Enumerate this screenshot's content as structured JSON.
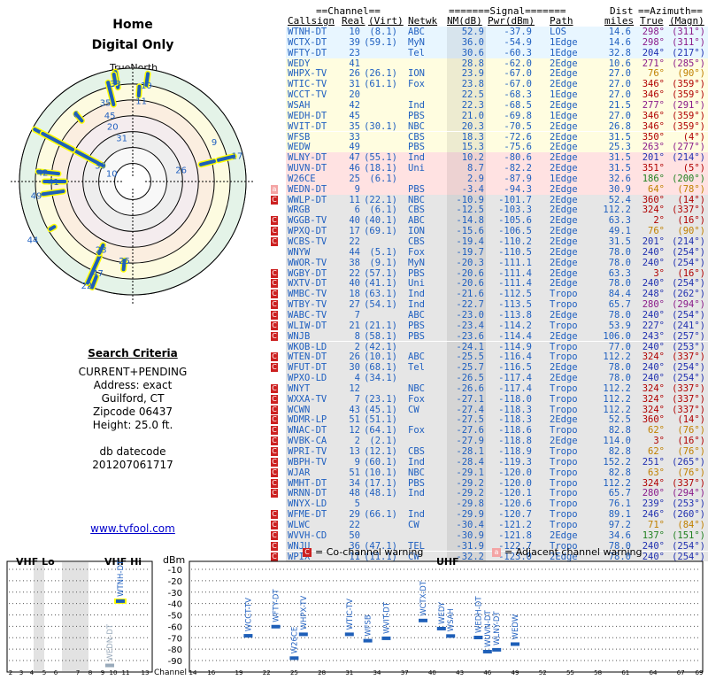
{
  "header": {
    "title": "Home",
    "subtitle": "Digital Only",
    "true_north": "TrueNorth"
  },
  "criteria": {
    "heading": "Search Criteria",
    "lines": [
      "CURRENT+PENDING",
      "Address: exact",
      "Guilford, CT",
      "Zipcode 06437",
      "Height: 25.0 ft."
    ],
    "datecode_label": "db datecode",
    "datecode": "201207061717"
  },
  "link": "www.tvfool.com",
  "table_headers": {
    "group1": "==Channel==",
    "group2": "=======Signal=======",
    "group3": "Dist",
    "group4": "==Azimuth==",
    "callsign": "Callsign",
    "real": "Real",
    "virt": "(Virt)",
    "netwk": "Netwk",
    "nm": "NM(dB)",
    "pwr": "Pwr(dBm)",
    "path": "Path",
    "miles": "miles",
    "true": "True",
    "magn": "(Magn)"
  },
  "stations": [
    [
      "WTNH-DT",
      "10",
      "(8.1)",
      "ABC",
      "52.9",
      "-37.9",
      "LOS",
      "14.6",
      "298°",
      "(311°)",
      "#e8f6ff",
      "n"
    ],
    [
      "WCTX-DT",
      "39",
      "(59.1)",
      "MyN",
      "36.0",
      "-54.9",
      "1Edge",
      "14.6",
      "298°",
      "(311°)",
      "#e8f6ff",
      "n"
    ],
    [
      "WFTY-DT",
      "23",
      "",
      "Tel",
      "30.6",
      "-60.3",
      "1Edge",
      "32.8",
      "204°",
      "(217°)",
      "#e8f6ff",
      "n"
    ],
    [
      "WEDY",
      "41",
      "",
      "",
      "28.8",
      "-62.0",
      "2Edge",
      "10.6",
      "271°",
      "(285°)",
      "#fffde0",
      "n"
    ],
    [
      "WHPX-TV",
      "26",
      "(26.1)",
      "ION",
      "23.9",
      "-67.0",
      "2Edge",
      "27.0",
      "76°",
      "(90°)",
      "#fffde0",
      "n"
    ],
    [
      "WTIC-TV",
      "31",
      "(61.1)",
      "Fox",
      "23.8",
      "-67.0",
      "2Edge",
      "27.0",
      "346°",
      "(359°)",
      "#fffde0",
      "n"
    ],
    [
      "WCCT-TV",
      "20",
      "",
      "",
      "22.5",
      "-68.3",
      "1Edge",
      "27.0",
      "346°",
      "(359°)",
      "#fffde0",
      "n"
    ],
    [
      "WSAH",
      "42",
      "",
      "Ind",
      "22.3",
      "-68.5",
      "2Edge",
      "21.5",
      "277°",
      "(291°)",
      "#fffde0",
      "n"
    ],
    [
      "WEDH-DT",
      "45",
      "",
      "PBS",
      "21.0",
      "-69.8",
      "1Edge",
      "27.0",
      "346°",
      "(359°)",
      "#fffde0",
      "n"
    ],
    [
      "WVIT-DT",
      "35",
      "(30.1)",
      "NBC",
      "20.3",
      "-70.5",
      "2Edge",
      "26.8",
      "346°",
      "(359°)",
      "#fffde0",
      "n"
    ],
    [
      "WFSB",
      "33",
      "",
      "CBS",
      "18.3",
      "-72.6",
      "2Edge",
      "31.5",
      "350°",
      "(4°)",
      "#fffde0",
      "n"
    ],
    [
      "WEDW",
      "49",
      "",
      "PBS",
      "15.3",
      "-75.6",
      "2Edge",
      "25.3",
      "263°",
      "(277°)",
      "#fffde0",
      "n"
    ],
    [
      "WLNY-DT",
      "47",
      "(55.1)",
      "Ind",
      "10.2",
      "-80.6",
      "2Edge",
      "31.5",
      "201°",
      "(214°)",
      "#ffe2e2",
      "n"
    ],
    [
      "WUVN-DT",
      "46",
      "(18.1)",
      "Uni",
      "8.7",
      "-82.2",
      "2Edge",
      "31.5",
      "351°",
      "(5°)",
      "#ffe2e2",
      "n"
    ],
    [
      "W26CE",
      "25",
      "(6.1)",
      "",
      "2.9",
      "-87.9",
      "1Edge",
      "32.6",
      "186°",
      "(200°)",
      "#ffe2e2",
      "n"
    ],
    [
      "WEDN-DT",
      "9",
      "",
      "PBS",
      "-3.4",
      "-94.3",
      "2Edge",
      "30.9",
      "64°",
      "(78°)",
      "#ffe2e2",
      "a"
    ],
    [
      "WWLP-DT",
      "11",
      "(22.1)",
      "NBC",
      "-10.9",
      "-101.7",
      "2Edge",
      "52.4",
      "360°",
      "(14°)",
      "#e6e6e6",
      "c"
    ],
    [
      "WRGB",
      "6",
      "(6.1)",
      "CBS",
      "-12.5",
      "-103.3",
      "2Edge",
      "112.2",
      "324°",
      "(337°)",
      "#e6e6e6",
      "n"
    ],
    [
      "WGGB-TV",
      "40",
      "(40.1)",
      "ABC",
      "-14.8",
      "-105.6",
      "2Edge",
      "63.3",
      "2°",
      "(16°)",
      "#e6e6e6",
      "c"
    ],
    [
      "WPXQ-DT",
      "17",
      "(69.1)",
      "ION",
      "-15.6",
      "-106.5",
      "2Edge",
      "49.1",
      "76°",
      "(90°)",
      "#e6e6e6",
      "c"
    ],
    [
      "WCBS-TV",
      "22",
      "",
      "CBS",
      "-19.4",
      "-110.2",
      "2Edge",
      "31.5",
      "201°",
      "(214°)",
      "#e6e6e6",
      "c"
    ],
    [
      "WNYW",
      "44",
      "(5.1)",
      "Fox",
      "-19.7",
      "-110.5",
      "2Edge",
      "78.0",
      "240°",
      "(254°)",
      "#e6e6e6",
      "n"
    ],
    [
      "WWOR-TV",
      "38",
      "(9.1)",
      "MyN",
      "-20.3",
      "-111.1",
      "2Edge",
      "78.0",
      "240°",
      "(254°)",
      "#e6e6e6",
      "n"
    ],
    [
      "WGBY-DT",
      "22",
      "(57.1)",
      "PBS",
      "-20.6",
      "-111.4",
      "2Edge",
      "63.3",
      "3°",
      "(16°)",
      "#e6e6e6",
      "c"
    ],
    [
      "WXTV-DT",
      "40",
      "(41.1)",
      "Uni",
      "-20.6",
      "-111.4",
      "2Edge",
      "78.0",
      "240°",
      "(254°)",
      "#e6e6e6",
      "c"
    ],
    [
      "WMBC-TV",
      "18",
      "(63.1)",
      "Ind",
      "-21.6",
      "-112.5",
      "Tropo",
      "84.4",
      "248°",
      "(262°)",
      "#e6e6e6",
      "c"
    ],
    [
      "WTBY-TV",
      "27",
      "(54.1)",
      "Ind",
      "-22.7",
      "-113.5",
      "Tropo",
      "65.7",
      "280°",
      "(294°)",
      "#e6e6e6",
      "c"
    ],
    [
      "WABC-TV",
      "7",
      "",
      "ABC",
      "-23.0",
      "-113.8",
      "2Edge",
      "78.0",
      "240°",
      "(254°)",
      "#e6e6e6",
      "c"
    ],
    [
      "WLIW-DT",
      "21",
      "(21.1)",
      "PBS",
      "-23.4",
      "-114.2",
      "Tropo",
      "53.9",
      "227°",
      "(241°)",
      "#e6e6e6",
      "c"
    ],
    [
      "WNJB",
      "8",
      "(58.1)",
      "PBS",
      "-23.6",
      "-114.4",
      "2Edge",
      "106.0",
      "243°",
      "(257°)",
      "#e6e6e6",
      "c"
    ],
    [
      "WKOB-LD",
      "2",
      "(42.1)",
      "",
      "-24.1",
      "-114.9",
      "Tropo",
      "77.0",
      "240°",
      "(253°)",
      "#e6e6e6",
      "n"
    ],
    [
      "WTEN-DT",
      "26",
      "(10.1)",
      "ABC",
      "-25.5",
      "-116.4",
      "Tropo",
      "112.2",
      "324°",
      "(337°)",
      "#e6e6e6",
      "c"
    ],
    [
      "WFUT-DT",
      "30",
      "(68.1)",
      "Tel",
      "-25.7",
      "-116.5",
      "2Edge",
      "78.0",
      "240°",
      "(254°)",
      "#e6e6e6",
      "c"
    ],
    [
      "WPXO-LD",
      "4",
      "(34.1)",
      "",
      "-26.5",
      "-117.4",
      "2Edge",
      "78.0",
      "240°",
      "(254°)",
      "#e6e6e6",
      "n"
    ],
    [
      "WNYT",
      "12",
      "",
      "NBC",
      "-26.6",
      "-117.4",
      "Tropo",
      "112.2",
      "324°",
      "(337°)",
      "#e6e6e6",
      "c"
    ],
    [
      "WXXA-TV",
      "7",
      "(23.1)",
      "Fox",
      "-27.1",
      "-118.0",
      "Tropo",
      "112.2",
      "324°",
      "(337°)",
      "#e6e6e6",
      "c"
    ],
    [
      "WCWN",
      "43",
      "(45.1)",
      "CW",
      "-27.4",
      "-118.3",
      "Tropo",
      "112.2",
      "324°",
      "(337°)",
      "#e6e6e6",
      "c"
    ],
    [
      "WDMR-LP",
      "51",
      "(51.1)",
      "",
      "-27.5",
      "-118.3",
      "2Edge",
      "52.5",
      "360°",
      "(14°)",
      "#e6e6e6",
      "c"
    ],
    [
      "WNAC-DT",
      "12",
      "(64.1)",
      "Fox",
      "-27.6",
      "-118.6",
      "Tropo",
      "82.8",
      "62°",
      "(76°)",
      "#e6e6e6",
      "c"
    ],
    [
      "WVBK-CA",
      "2",
      "(2.1)",
      "",
      "-27.9",
      "-118.8",
      "2Edge",
      "114.0",
      "3°",
      "(16°)",
      "#e6e6e6",
      "c"
    ],
    [
      "WPRI-TV",
      "13",
      "(12.1)",
      "CBS",
      "-28.1",
      "-118.9",
      "Tropo",
      "82.8",
      "62°",
      "(76°)",
      "#e6e6e6",
      "c"
    ],
    [
      "WBPH-TV",
      "9",
      "(60.1)",
      "Ind",
      "-28.4",
      "-119.3",
      "Tropo",
      "152.2",
      "251°",
      "(265°)",
      "#e6e6e6",
      "c"
    ],
    [
      "WJAR",
      "51",
      "(10.1)",
      "NBC",
      "-29.1",
      "-120.0",
      "Tropo",
      "82.8",
      "63°",
      "(76°)",
      "#e6e6e6",
      "c"
    ],
    [
      "WMHT-DT",
      "34",
      "(17.1)",
      "PBS",
      "-29.2",
      "-120.0",
      "Tropo",
      "112.2",
      "324°",
      "(337°)",
      "#e6e6e6",
      "c"
    ],
    [
      "WRNN-DT",
      "48",
      "(48.1)",
      "Ind",
      "-29.2",
      "-120.1",
      "Tropo",
      "65.7",
      "280°",
      "(294°)",
      "#e6e6e6",
      "c"
    ],
    [
      "WNYX-LD",
      "5",
      "",
      "",
      "-29.8",
      "-120.6",
      "Tropo",
      "76.1",
      "239°",
      "(253°)",
      "#e6e6e6",
      "n"
    ],
    [
      "WFME-DT",
      "29",
      "(66.1)",
      "Ind",
      "-29.9",
      "-120.7",
      "Tropo",
      "89.1",
      "246°",
      "(260°)",
      "#e6e6e6",
      "c"
    ],
    [
      "WLWC",
      "22",
      "",
      "CW",
      "-30.4",
      "-121.2",
      "Tropo",
      "97.2",
      "71°",
      "(84°)",
      "#e6e6e6",
      "c"
    ],
    [
      "WVVH-CD",
      "50",
      "",
      "",
      "-30.9",
      "-121.8",
      "2Edge",
      "34.6",
      "137°",
      "(151°)",
      "#e6e6e6",
      "c"
    ],
    [
      "WNJU",
      "36",
      "(47.1)",
      "TEL",
      "-31.9",
      "-122.7",
      "Tropo",
      "78.0",
      "240°",
      "(254°)",
      "#e6e6e6",
      "c"
    ],
    [
      "WPIX",
      "11",
      "(11.1)",
      "CW",
      "-32.2",
      "-123.0",
      "2Edge",
      "78.0",
      "240°",
      "(254°)",
      "#e6e6e6",
      "c"
    ]
  ],
  "legend": {
    "co": "= Co-channel warning",
    "adj": "= Adjacent channel warning",
    "co_glyph": "C",
    "adj_glyph": "a"
  },
  "spectrum": {
    "vhf_lo": "VHF Lo",
    "vhf_hi": "VHF Hi",
    "uhf": "UHF",
    "dbm": "dBm",
    "channel": "Channel",
    "y_ticks": [
      "-10",
      "-20",
      "-30",
      "-40",
      "-50",
      "-60",
      "-70",
      "-80",
      "-90"
    ],
    "vhf_ticks": [
      "2",
      "3",
      "4",
      "5",
      "6",
      "7",
      "8",
      "9",
      "10",
      "11",
      "13"
    ],
    "uhf_ticks": [
      "14",
      "16",
      "19",
      "22",
      "25",
      "28",
      "31",
      "34",
      "37",
      "40",
      "43",
      "46",
      "49",
      "52",
      "55",
      "58",
      "61",
      "64",
      "67",
      "69"
    ],
    "markers": [
      {
        "name": "WTNH-DT",
        "ch": 10,
        "dbm": -37.9,
        "band": "vhf"
      },
      {
        "name": "WEDN-DT",
        "ch": 9,
        "dbm": -94.3,
        "band": "vhf"
      },
      {
        "name": "WCCT-TV",
        "ch": 20,
        "dbm": -68.3
      },
      {
        "name": "WFTY-DT",
        "ch": 23,
        "dbm": -60.3
      },
      {
        "name": "W26CE",
        "ch": 25,
        "dbm": -87.9
      },
      {
        "name": "WHPX-TV",
        "ch": 26,
        "dbm": -67.0
      },
      {
        "name": "WTIC-TV",
        "ch": 31,
        "dbm": -67.0
      },
      {
        "name": "WFSB",
        "ch": 33,
        "dbm": -72.6
      },
      {
        "name": "WVIT-DT",
        "ch": 35,
        "dbm": -70.5
      },
      {
        "name": "WCTX-DT",
        "ch": 39,
        "dbm": -54.9
      },
      {
        "name": "WEDY",
        "ch": 41,
        "dbm": -62.0
      },
      {
        "name": "WSAH",
        "ch": 42,
        "dbm": -68.5
      },
      {
        "name": "WEDH-DT",
        "ch": 45,
        "dbm": -69.8
      },
      {
        "name": "WUVN-DT",
        "ch": 46,
        "dbm": -82.2
      },
      {
        "name": "WLNY-DT",
        "ch": 47,
        "dbm": -80.6
      },
      {
        "name": "WEDW",
        "ch": 49,
        "dbm": -75.6
      }
    ]
  },
  "polar_labels": [
    {
      "t": "33",
      "a": 350,
      "r": 0.88
    },
    {
      "t": "35",
      "a": 341,
      "r": 0.74
    },
    {
      "t": "45",
      "a": 341,
      "r": 0.62
    },
    {
      "t": "20",
      "a": 340,
      "r": 0.52
    },
    {
      "t": "31",
      "a": 346,
      "r": 0.4
    },
    {
      "t": "10",
      "a": 8,
      "r": 0.86
    },
    {
      "t": "11",
      "a": 6,
      "r": 0.72
    },
    {
      "t": "6",
      "a": 320,
      "r": 0.78
    },
    {
      "t": "39",
      "a": 297,
      "r": 0.32
    },
    {
      "t": "10",
      "a": 292,
      "r": 0.2
    },
    {
      "t": "42",
      "a": 276,
      "r": 0.8
    },
    {
      "t": "41",
      "a": 270,
      "r": 0.7
    },
    {
      "t": "49",
      "a": 262,
      "r": 0.86
    },
    {
      "t": "9",
      "a": 64,
      "r": 0.8
    },
    {
      "t": "17",
      "a": 76,
      "r": 0.95
    },
    {
      "t": "26",
      "a": 76,
      "r": 0.44
    },
    {
      "t": "44",
      "a": 240,
      "r": 1.02
    },
    {
      "t": "23",
      "a": 205,
      "r": 0.66
    },
    {
      "t": "47",
      "a": 201,
      "r": 0.86
    },
    {
      "t": "22",
      "a": 204,
      "r": 1.0
    },
    {
      "t": "25",
      "a": 186,
      "r": 0.7
    }
  ],
  "colors": {
    "green": "#eaf7ea",
    "yellow": "#fffde0",
    "red": "#ffe2e2",
    "grey": "#e6e6e6",
    "blue": "#2060c0",
    "warn_red": "#cc2020",
    "warn_pink": "#f4a4a4",
    "marker": "#1e5fb8"
  }
}
